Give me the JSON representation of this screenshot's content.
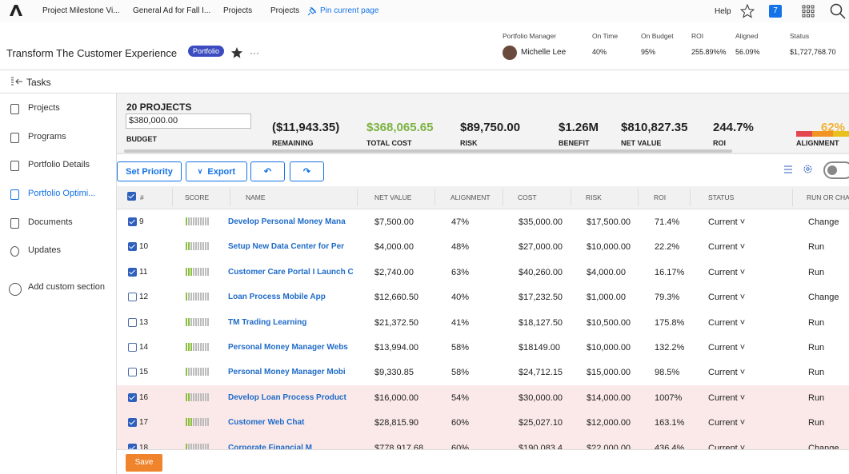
{
  "topnav": {
    "tabs": [
      "Project Milestone Vi...",
      "General Ad for Fall I...",
      "Projects",
      "Projects"
    ],
    "pin": "Pin current page",
    "help": "Help",
    "badge": "7"
  },
  "header": {
    "title": "Transform The Customer Experience",
    "tag": "Portfolio",
    "stats": [
      {
        "label": "Portfolio Manager",
        "value": "Michelle Lee"
      },
      {
        "label": "On Time",
        "value": "40%"
      },
      {
        "label": "On Budget",
        "value": "95%"
      },
      {
        "label": "ROI",
        "value": "255.89%%"
      },
      {
        "label": "Aligned",
        "value": "56.09%"
      },
      {
        "label": "Status",
        "value": "$1,727,768.70"
      }
    ]
  },
  "tasks": "Tasks",
  "sidebar": [
    "Projects",
    "Programs",
    "Portfolio Details",
    "Portfolio Optimi...",
    "Documents",
    "Updates",
    "Add custom section"
  ],
  "summary": {
    "count": "20 PROJECTS",
    "budget_input": "$380,000.00",
    "budget_label": "BUDGET",
    "metrics": [
      {
        "value": "($11,943.35)",
        "label": "REMAINING"
      },
      {
        "value": "$368,065.65",
        "label": "TOTAL COST"
      },
      {
        "value": "$89,750.00",
        "label": "RISK"
      },
      {
        "value": "$1.26M",
        "label": "BENEFIT"
      },
      {
        "value": "$810,827.35",
        "label": "NET VALUE"
      },
      {
        "value": "244.7%",
        "label": "ROI"
      },
      {
        "value": "62%",
        "label": "ALIGNMENT"
      }
    ]
  },
  "toolbar": {
    "set_priority": "Set Priority",
    "export": "Export"
  },
  "table": {
    "columns": [
      "#",
      "SCORE",
      "NAME",
      "NET VALUE",
      "ALIGNMENT",
      "COST",
      "RISK",
      "ROI",
      "STATUS",
      "RUN OR CHA"
    ],
    "rows": [
      {
        "checked": true,
        "highlighted": false,
        "cells": [
          "9",
          "Develop Personal Money Mana",
          "$7,500.00",
          "47%",
          "$35,000.00",
          "$17,500.00",
          "71.4%",
          "Current",
          "Change"
        ]
      },
      {
        "checked": true,
        "highlighted": false,
        "cells": [
          "10",
          "Setup New Data Center for Per",
          "$4,000.00",
          "48%",
          "$27,000.00",
          "$10,000.00",
          "22.2%",
          "Current",
          "Run"
        ]
      },
      {
        "checked": true,
        "highlighted": false,
        "cells": [
          "11",
          "Customer Care Portal I Launch C",
          "$2,740.00",
          "63%",
          "$40,260.00",
          "$4,000.00",
          "16.17%",
          "Current",
          "Run"
        ]
      },
      {
        "checked": false,
        "highlighted": false,
        "cells": [
          "12",
          "Loan Process Mobile App",
          "$12,660.50",
          "40%",
          "$17,232.50",
          "$1,000.00",
          "79.3%",
          "Current",
          "Change"
        ]
      },
      {
        "checked": false,
        "highlighted": false,
        "cells": [
          "13",
          "TM Trading Learning",
          "$21,372.50",
          "41%",
          "$18,127.50",
          "$10,500.00",
          "175.8%",
          "Current",
          "Run"
        ]
      },
      {
        "checked": false,
        "highlighted": false,
        "cells": [
          "14",
          "Personal Money Manager Webs",
          "$13,994.00",
          "58%",
          "$18149.00",
          "$10,000.00",
          "132.2%",
          "Current",
          "Run"
        ]
      },
      {
        "checked": false,
        "highlighted": false,
        "cells": [
          "15",
          "Personal Money Manager Mobi",
          "$9,330.85",
          "58%",
          "$24,712.15",
          "$15,000.00",
          "98.5%",
          "Current",
          "Run"
        ]
      },
      {
        "checked": true,
        "highlighted": true,
        "cells": [
          "16",
          "Develop Loan Process Product",
          "$16,000.00",
          "54%",
          "$30,000.00",
          "$14,000.00",
          "1007%",
          "Current",
          "Run"
        ]
      },
      {
        "checked": true,
        "highlighted": true,
        "cells": [
          "17",
          "Customer Web Chat",
          "$28,815.90",
          "60%",
          "$25,027.10",
          "$12,000.00",
          "163.1%",
          "Current",
          "Run"
        ]
      },
      {
        "checked": true,
        "highlighted": true,
        "cells": [
          "18",
          "Corporate Financial M",
          "$778,917.68",
          "60%",
          "$190,083.4",
          "$22,000.00",
          "436.4%",
          "Current",
          "Change"
        ]
      }
    ]
  },
  "footer": {
    "save": "Save"
  }
}
